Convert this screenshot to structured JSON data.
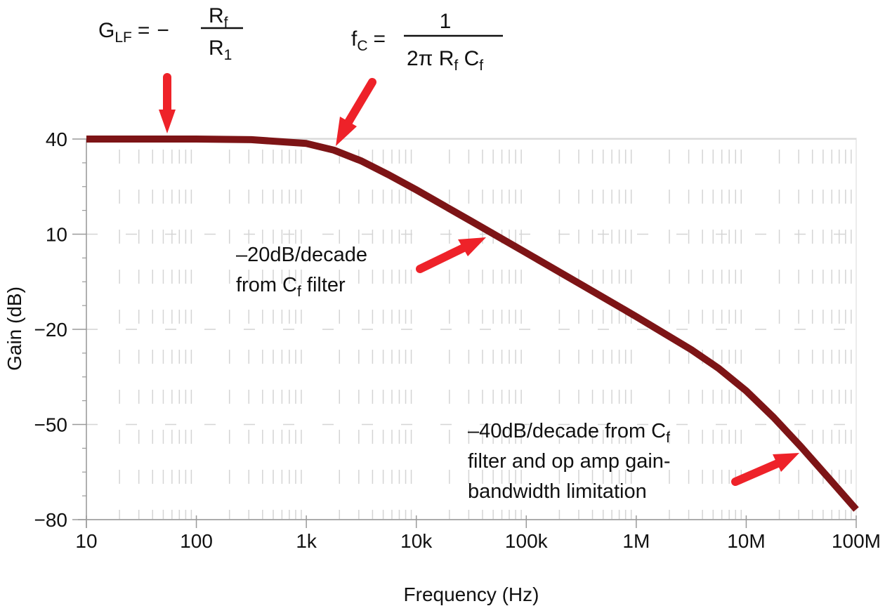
{
  "chart_data": {
    "type": "line",
    "title": "",
    "xlabel": "Frequency (Hz)",
    "ylabel": "Gain (dB)",
    "xscale": "log",
    "xlim": [
      10,
      100000000
    ],
    "ylim": [
      -80,
      40
    ],
    "grid": true,
    "x_tick_labels": [
      "10",
      "100",
      "1k",
      "10k",
      "100k",
      "1M",
      "10M",
      "100M"
    ],
    "x_tick_values": [
      10,
      100,
      1000,
      10000,
      100000,
      1000000,
      10000000,
      100000000
    ],
    "y_tick_labels": [
      "40",
      "10",
      "−20",
      "−50",
      "−80"
    ],
    "y_tick_values": [
      40,
      10,
      -20,
      -50,
      -80
    ],
    "series": [
      {
        "name": "Gain",
        "color": "#7d1416",
        "x": [
          10,
          100,
          316,
          1000,
          1780,
          3160,
          5620,
          10000,
          31600,
          100000,
          316000,
          1000000,
          3160000,
          5620000,
          10000000,
          17800000,
          31600000,
          56200000,
          100000000
        ],
        "y": [
          40.0,
          40.0,
          39.8,
          38.6,
          36.5,
          33.1,
          28.7,
          24.0,
          14.1,
          4.1,
          -5.9,
          -16.0,
          -26.4,
          -32.3,
          -39.4,
          -47.8,
          -57.1,
          -66.9,
          -76.8
        ]
      }
    ],
    "annotations": [
      {
        "id": "glf",
        "text": "G_LF = − R_f / R_1",
        "points_to": {
          "x": 50,
          "y": 40
        }
      },
      {
        "id": "fc",
        "text": "f_C = 1 / (2π R_f C_f)",
        "points_to": {
          "x": 1800,
          "y": 37
        }
      },
      {
        "id": "slope20",
        "text": "–20dB/decade from C_f filter",
        "points_to": {
          "x": 45000,
          "y": 10
        }
      },
      {
        "id": "slope40",
        "text": "–40dB/decade from C_f filter and op amp gain-bandwidth limitation",
        "points_to": {
          "x": 30000000,
          "y": -59
        }
      }
    ]
  },
  "labels": {
    "xlabel": "Frequency (Hz)",
    "ylabel": "Gain (dB)",
    "glf": {
      "G": "G",
      "sub": "LF",
      "eq": "=",
      "minus": "−",
      "num": "R",
      "num_sub": "f",
      "den": "R",
      "den_sub": "1"
    },
    "fc": {
      "f": "f",
      "sub": "C",
      "eq": "=",
      "num": "1",
      "den_a": "2π R",
      "den_a_sub": "f",
      "den_b": " C",
      "den_b_sub": "f"
    },
    "slope20": {
      "line1": "–20dB/decade",
      "line2a": "from C",
      "line2_sub": "f",
      "line2b": " filter"
    },
    "slope40": {
      "line1a": "–40dB/decade from C",
      "line1_sub": "f",
      "line2": "filter and op amp gain-",
      "line3": "bandwidth limitation"
    }
  },
  "colors": {
    "curve": "#7d1416",
    "arrow": "#ee2229",
    "grid": "#d4d4d4",
    "axis": "#9a9a9a",
    "frame": "#e6e6e6"
  }
}
